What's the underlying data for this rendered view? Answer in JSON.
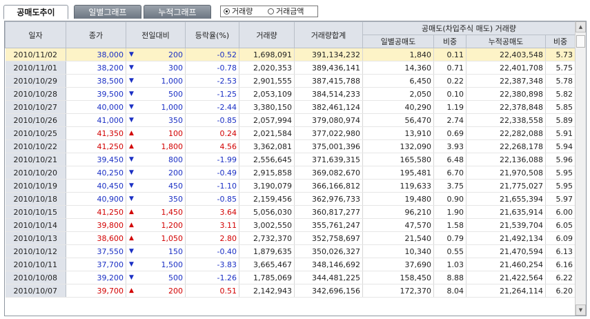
{
  "tabs": [
    {
      "label": "공매도추이",
      "active": true
    },
    {
      "label": "일별그래프",
      "active": false
    },
    {
      "label": "누적그래프",
      "active": false
    }
  ],
  "view_options": [
    {
      "label": "거래량",
      "selected": true
    },
    {
      "label": "거래금액",
      "selected": false
    }
  ],
  "table": {
    "headers": {
      "date": "일자",
      "close": "종가",
      "change": "전일대비",
      "rate": "등락율(%)",
      "volume": "거래량",
      "volume_sum": "거래량합계",
      "short_group": "공매도(차입주식 매도) 거래량",
      "daily_short": "일별공매도",
      "daily_ratio": "비중",
      "cum_short": "누적공매도",
      "cum_ratio": "비중"
    },
    "rows": [
      {
        "date": "2010/11/02",
        "close": "38,000",
        "dir": "down",
        "change": "200",
        "rate": "-0.52",
        "volume": "1,698,091",
        "volume_sum": "391,134,232",
        "daily_short": "1,840",
        "daily_ratio": "0.11",
        "cum_short": "22,403,548",
        "cum_ratio": "5.73"
      },
      {
        "date": "2010/11/01",
        "close": "38,200",
        "dir": "down",
        "change": "300",
        "rate": "-0.78",
        "volume": "2,020,353",
        "volume_sum": "389,436,141",
        "daily_short": "14,360",
        "daily_ratio": "0.71",
        "cum_short": "22,401,708",
        "cum_ratio": "5.75"
      },
      {
        "date": "2010/10/29",
        "close": "38,500",
        "dir": "down",
        "change": "1,000",
        "rate": "-2.53",
        "volume": "2,901,555",
        "volume_sum": "387,415,788",
        "daily_short": "6,450",
        "daily_ratio": "0.22",
        "cum_short": "22,387,348",
        "cum_ratio": "5.78"
      },
      {
        "date": "2010/10/28",
        "close": "39,500",
        "dir": "down",
        "change": "500",
        "rate": "-1.25",
        "volume": "2,053,109",
        "volume_sum": "384,514,233",
        "daily_short": "2,050",
        "daily_ratio": "0.10",
        "cum_short": "22,380,898",
        "cum_ratio": "5.82"
      },
      {
        "date": "2010/10/27",
        "close": "40,000",
        "dir": "down",
        "change": "1,000",
        "rate": "-2.44",
        "volume": "3,380,150",
        "volume_sum": "382,461,124",
        "daily_short": "40,290",
        "daily_ratio": "1.19",
        "cum_short": "22,378,848",
        "cum_ratio": "5.85"
      },
      {
        "date": "2010/10/26",
        "close": "41,000",
        "dir": "down",
        "change": "350",
        "rate": "-0.85",
        "volume": "2,057,994",
        "volume_sum": "379,080,974",
        "daily_short": "56,470",
        "daily_ratio": "2.74",
        "cum_short": "22,338,558",
        "cum_ratio": "5.89"
      },
      {
        "date": "2010/10/25",
        "close": "41,350",
        "dir": "up",
        "change": "100",
        "rate": "0.24",
        "volume": "2,021,584",
        "volume_sum": "377,022,980",
        "daily_short": "13,910",
        "daily_ratio": "0.69",
        "cum_short": "22,282,088",
        "cum_ratio": "5.91"
      },
      {
        "date": "2010/10/22",
        "close": "41,250",
        "dir": "up",
        "change": "1,800",
        "rate": "4.56",
        "volume": "3,362,081",
        "volume_sum": "375,001,396",
        "daily_short": "132,090",
        "daily_ratio": "3.93",
        "cum_short": "22,268,178",
        "cum_ratio": "5.94"
      },
      {
        "date": "2010/10/21",
        "close": "39,450",
        "dir": "down",
        "change": "800",
        "rate": "-1.99",
        "volume": "2,556,645",
        "volume_sum": "371,639,315",
        "daily_short": "165,580",
        "daily_ratio": "6.48",
        "cum_short": "22,136,088",
        "cum_ratio": "5.96"
      },
      {
        "date": "2010/10/20",
        "close": "40,250",
        "dir": "down",
        "change": "200",
        "rate": "-0.49",
        "volume": "2,915,858",
        "volume_sum": "369,082,670",
        "daily_short": "195,481",
        "daily_ratio": "6.70",
        "cum_short": "21,970,508",
        "cum_ratio": "5.95"
      },
      {
        "date": "2010/10/19",
        "close": "40,450",
        "dir": "down",
        "change": "450",
        "rate": "-1.10",
        "volume": "3,190,079",
        "volume_sum": "366,166,812",
        "daily_short": "119,633",
        "daily_ratio": "3.75",
        "cum_short": "21,775,027",
        "cum_ratio": "5.95"
      },
      {
        "date": "2010/10/18",
        "close": "40,900",
        "dir": "down",
        "change": "350",
        "rate": "-0.85",
        "volume": "2,159,456",
        "volume_sum": "362,976,733",
        "daily_short": "19,480",
        "daily_ratio": "0.90",
        "cum_short": "21,655,394",
        "cum_ratio": "5.97"
      },
      {
        "date": "2010/10/15",
        "close": "41,250",
        "dir": "up",
        "change": "1,450",
        "rate": "3.64",
        "volume": "5,056,030",
        "volume_sum": "360,817,277",
        "daily_short": "96,210",
        "daily_ratio": "1.90",
        "cum_short": "21,635,914",
        "cum_ratio": "6.00"
      },
      {
        "date": "2010/10/14",
        "close": "39,800",
        "dir": "up",
        "change": "1,200",
        "rate": "3.11",
        "volume": "3,002,550",
        "volume_sum": "355,761,247",
        "daily_short": "47,570",
        "daily_ratio": "1.58",
        "cum_short": "21,539,704",
        "cum_ratio": "6.05"
      },
      {
        "date": "2010/10/13",
        "close": "38,600",
        "dir": "up",
        "change": "1,050",
        "rate": "2.80",
        "volume": "2,732,370",
        "volume_sum": "352,758,697",
        "daily_short": "21,540",
        "daily_ratio": "0.79",
        "cum_short": "21,492,134",
        "cum_ratio": "6.09"
      },
      {
        "date": "2010/10/12",
        "close": "37,550",
        "dir": "down",
        "change": "150",
        "rate": "-0.40",
        "volume": "1,879,635",
        "volume_sum": "350,026,327",
        "daily_short": "10,340",
        "daily_ratio": "0.55",
        "cum_short": "21,470,594",
        "cum_ratio": "6.13"
      },
      {
        "date": "2010/10/11",
        "close": "37,700",
        "dir": "down",
        "change": "1,500",
        "rate": "-3.83",
        "volume": "3,665,467",
        "volume_sum": "348,146,692",
        "daily_short": "37,690",
        "daily_ratio": "1.03",
        "cum_short": "21,460,254",
        "cum_ratio": "6.16"
      },
      {
        "date": "2010/10/08",
        "close": "39,200",
        "dir": "down",
        "change": "500",
        "rate": "-1.26",
        "volume": "1,785,069",
        "volume_sum": "344,481,225",
        "daily_short": "158,450",
        "daily_ratio": "8.88",
        "cum_short": "21,422,564",
        "cum_ratio": "6.22"
      },
      {
        "date": "2010/10/07",
        "close": "39,700",
        "dir": "up",
        "change": "200",
        "rate": "0.51",
        "volume": "2,142,943",
        "volume_sum": "342,696,156",
        "daily_short": "172,370",
        "daily_ratio": "8.04",
        "cum_short": "21,264,114",
        "cum_ratio": "6.20"
      }
    ]
  },
  "colors": {
    "up": "#d20000",
    "down": "#1a2fc4",
    "header_bg": "#dfe3ea",
    "selected_row": "#fdf3c7"
  },
  "icons": {
    "up": "triangle-up-icon",
    "down": "triangle-down-icon"
  }
}
